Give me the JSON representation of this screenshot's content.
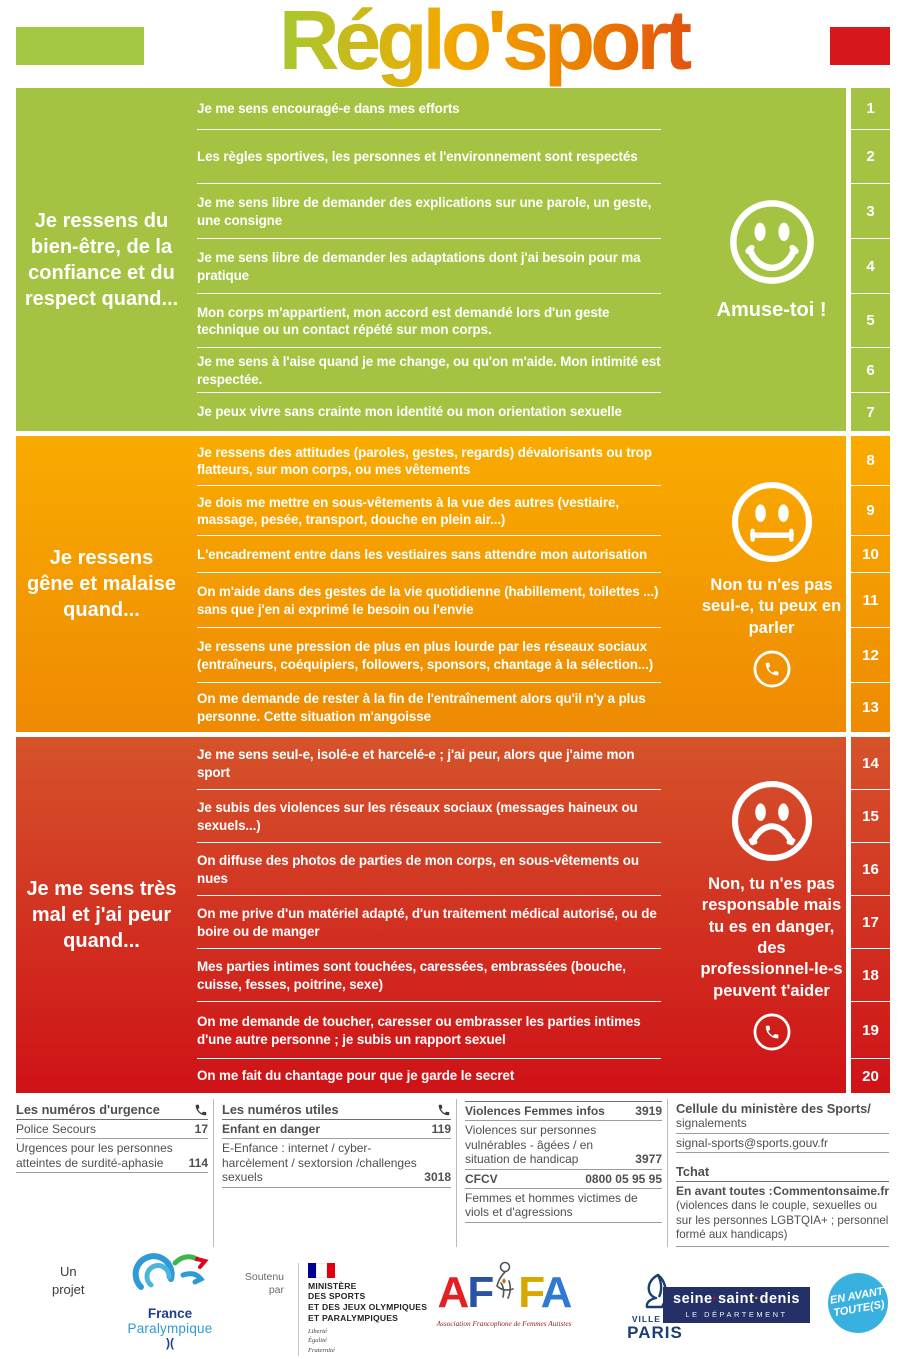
{
  "header": {
    "title": "Réglo'sport"
  },
  "colors": {
    "green": "#a4c342",
    "orange_top": "#f9ab00",
    "orange_bottom": "#ee8a03",
    "red_top": "#d5532b",
    "red_bottom": "#cf1217",
    "header_bar_green": "#a5c843",
    "header_bar_red": "#d6171c",
    "badge_blue": "#38b1e0",
    "ssd_navy": "#253069"
  },
  "sections": [
    {
      "tone": "green",
      "heading": "Je ressens du bien-être, de la confiance et du respect quand...",
      "mood": "happy",
      "message": "Amuse-toi !",
      "has_phone": false,
      "statements": [
        {
          "num": "1",
          "text": "Je me sens encouragé-e dans mes efforts"
        },
        {
          "num": "2",
          "text": "Les règles sportives, les personnes et l'environnement sont respectés"
        },
        {
          "num": "3",
          "text": "Je me sens libre de demander des explications sur une parole, un geste, une consigne"
        },
        {
          "num": "4",
          "text": "Je me sens libre de demander les adaptations dont j'ai besoin pour ma pratique"
        },
        {
          "num": "5",
          "text": "Mon corps m'appartient, mon accord est demandé lors d'un geste technique ou un contact répété sur mon corps."
        },
        {
          "num": "6",
          "text": "Je me sens à l'aise quand je me change, ou qu'on m'aide. Mon intimité est respectée."
        },
        {
          "num": "7",
          "text": "Je peux vivre sans crainte mon identité ou mon orientation sexuelle"
        }
      ]
    },
    {
      "tone": "orange",
      "heading": "Je ressens gêne et malaise quand...",
      "mood": "neutral",
      "message": "Non tu n'es pas seul-e, tu peux en parler",
      "has_phone": true,
      "statements": [
        {
          "num": "8",
          "text": "Je ressens des attitudes (paroles, gestes, regards) dévalorisants ou trop flatteurs, sur mon corps, ou mes vêtements"
        },
        {
          "num": "9",
          "text": "Je dois me mettre en sous-vêtements à la vue des autres (vestiaire, massage, pesée, transport, douche en plein air...)"
        },
        {
          "num": "10",
          "text": "L'encadrement entre dans les vestiaires sans attendre mon autorisation"
        },
        {
          "num": "11",
          "text": "On m'aide dans des gestes de la vie quotidienne (habillement, toilettes ...) sans que j'en ai exprimé le besoin ou l'envie"
        },
        {
          "num": "12",
          "text": "Je ressens une pression de plus en plus lourde par les réseaux sociaux (entraîneurs, coéquipiers, followers, sponsors, chantage à la sélection...)"
        },
        {
          "num": "13",
          "text": "On me demande de rester à la fin de l'entraînement alors qu'il n'y a plus personne. Cette situation m'angoisse"
        }
      ]
    },
    {
      "tone": "red",
      "heading": "Je me sens très mal et j'ai peur quand...",
      "mood": "sad",
      "message": "Non, tu n'es pas responsable mais tu es en danger, des professionnel-le-s peuvent t'aider",
      "has_phone": true,
      "statements": [
        {
          "num": "14",
          "text": "Je me sens seul-e, isolé-e et harcelé-e ; j'ai peur, alors que j'aime mon sport"
        },
        {
          "num": "15",
          "text": "Je subis des violences sur les réseaux sociaux (messages haineux ou sexuels...)"
        },
        {
          "num": "16",
          "text": "On diffuse des photos de parties de mon corps, en sous-vêtements ou nues"
        },
        {
          "num": "17",
          "text": "On me prive d'un matériel adapté, d'un traitement médical autorisé, ou de boire ou de manger"
        },
        {
          "num": "18",
          "text": "Mes parties intimes sont touchées, caressées, embrassées (bouche, cuisse, fesses, poitrine, sexe)"
        },
        {
          "num": "19",
          "text": "On me demande de toucher, caresser ou embrasser les parties intimes d'une autre personne ; je subis un rapport sexuel"
        },
        {
          "num": "20",
          "text": "On me fait du chantage pour que je garde le secret"
        }
      ]
    }
  ],
  "footer": {
    "col1": {
      "heading": "Les numéros d'urgence",
      "rows": [
        {
          "label": "Police Secours",
          "num": "17"
        },
        {
          "label": "Urgences pour les personnes atteintes de surdité-aphasie",
          "num": "114"
        }
      ]
    },
    "col2": {
      "heading": "Les numéros utiles",
      "rows": [
        {
          "label": "Enfant en danger",
          "num": "119",
          "bold": true
        },
        {
          "label": "E-Enfance : internet / cyber-harcèlement / sextorsion /challenges sexuels",
          "num": "3018",
          "lead": "E-Enfance :"
        }
      ]
    },
    "col3": {
      "rows": [
        {
          "label": "Violences Femmes infos",
          "num": "3919",
          "bold": true
        },
        {
          "label": "Violences sur personnes vulnérables - âgées / en situation de handicap",
          "num": "3977"
        },
        {
          "label": "CFCV",
          "num": "0800 05 95 95",
          "bold": true
        },
        {
          "label": "Femmes et hommes victimes de viols et d'agressions",
          "num": ""
        }
      ]
    },
    "col4": {
      "heading_line1": "Cellule du ministère des Sports/",
      "heading_line2": "signalements",
      "email": "signal-sports@sports.gouv.fr",
      "tchat_heading": "Tchat",
      "tchat_label": "En avant toutes :",
      "tchat_site": "Commentonsaime.fr",
      "tchat_note": "(violences dans le couple, sexuelles ou sur les personnes LGBTQIA+ ; personnel formé aux handicaps)"
    }
  },
  "logos": {
    "un_projet": "Un projet",
    "paralympique_line1": "France",
    "paralympique_line2": "Paralympique",
    "soutenu_par": "Soutenu par",
    "ministere_lines": "MINISTÈRE DES SPORTS ET DES JEUX OLYMPIQUES ET PARALYMPIQUES",
    "ministere_l1": "MINISTÈRE",
    "ministere_l2": "DES SPORTS",
    "ministere_l3": "ET DES JEUX OLYMPIQUES",
    "ministere_l4": "ET PARALYMPIQUES",
    "ministere_motto": "Liberté Égalité Fraternité",
    "affa_caption": "Association Francophone de Femmes Autistes",
    "paris_line1": "VILLE DE",
    "paris_line2": "PARIS",
    "ssd_line1": "seine·saint·denis",
    "ssd_line2": "LE DÉPARTEMENT",
    "badge_line1": "EN AVANT",
    "badge_line2": "TOUTE(S)"
  }
}
